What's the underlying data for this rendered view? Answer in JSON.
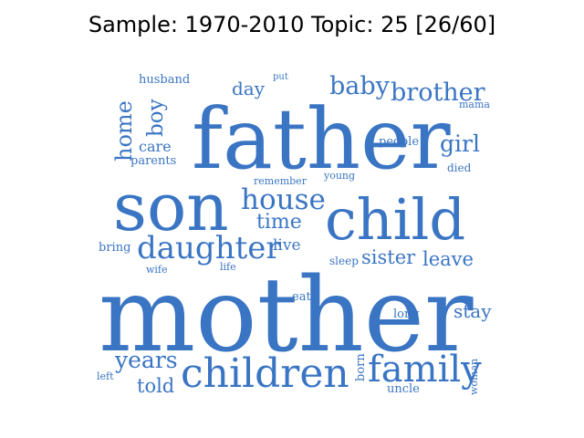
{
  "title": "Sample: 1970-2010 Topic: 25 [26/60]",
  "word_color": "#3a75c4",
  "words": [
    {
      "text": "father",
      "weight": 100,
      "orientation": "horizontal"
    },
    {
      "text": "mother",
      "weight": 100,
      "orientation": "horizontal"
    },
    {
      "text": "son",
      "weight": 78,
      "orientation": "horizontal"
    },
    {
      "text": "child",
      "weight": 70,
      "orientation": "horizontal"
    },
    {
      "text": "children",
      "weight": 42,
      "orientation": "horizontal"
    },
    {
      "text": "family",
      "weight": 38,
      "orientation": "horizontal"
    },
    {
      "text": "daughter",
      "weight": 35,
      "orientation": "horizontal"
    },
    {
      "text": "house",
      "weight": 30,
      "orientation": "horizontal"
    },
    {
      "text": "brother",
      "weight": 26,
      "orientation": "horizontal"
    },
    {
      "text": "baby",
      "weight": 26,
      "orientation": "horizontal"
    },
    {
      "text": "years",
      "weight": 24,
      "orientation": "horizontal"
    },
    {
      "text": "home",
      "weight": 24,
      "orientation": "vertical"
    },
    {
      "text": "girl",
      "weight": 23,
      "orientation": "horizontal"
    },
    {
      "text": "time",
      "weight": 22,
      "orientation": "horizontal"
    },
    {
      "text": "boy",
      "weight": 22,
      "orientation": "vertical"
    },
    {
      "text": "sister",
      "weight": 20,
      "orientation": "horizontal"
    },
    {
      "text": "leave",
      "weight": 20,
      "orientation": "horizontal"
    },
    {
      "text": "told",
      "weight": 20,
      "orientation": "horizontal"
    },
    {
      "text": "stay",
      "weight": 19,
      "orientation": "horizontal"
    },
    {
      "text": "day",
      "weight": 18,
      "orientation": "horizontal"
    },
    {
      "text": "live",
      "weight": 16,
      "orientation": "horizontal"
    },
    {
      "text": "care",
      "weight": 15,
      "orientation": "horizontal"
    },
    {
      "text": "born",
      "weight": 13,
      "orientation": "vertical"
    },
    {
      "text": "people",
      "weight": 12,
      "orientation": "horizontal"
    },
    {
      "text": "parents",
      "weight": 12,
      "orientation": "horizontal"
    },
    {
      "text": "long",
      "weight": 12,
      "orientation": "horizontal"
    },
    {
      "text": "uncle",
      "weight": 12,
      "orientation": "horizontal"
    },
    {
      "text": "husband",
      "weight": 12,
      "orientation": "horizontal"
    },
    {
      "text": "bring",
      "weight": 12,
      "orientation": "horizontal"
    },
    {
      "text": "eat",
      "weight": 12,
      "orientation": "horizontal"
    },
    {
      "text": "sleep",
      "weight": 12,
      "orientation": "horizontal"
    },
    {
      "text": "died",
      "weight": 11,
      "orientation": "horizontal"
    },
    {
      "text": "young",
      "weight": 11,
      "orientation": "horizontal"
    },
    {
      "text": "remember",
      "weight": 11,
      "orientation": "horizontal"
    },
    {
      "text": "woman",
      "weight": 11,
      "orientation": "vertical"
    },
    {
      "text": "mama",
      "weight": 10,
      "orientation": "horizontal"
    },
    {
      "text": "wife",
      "weight": 10,
      "orientation": "horizontal"
    },
    {
      "text": "life",
      "weight": 10,
      "orientation": "horizontal"
    },
    {
      "text": "left",
      "weight": 10,
      "orientation": "horizontal"
    },
    {
      "text": "put",
      "weight": 9,
      "orientation": "horizontal"
    }
  ]
}
